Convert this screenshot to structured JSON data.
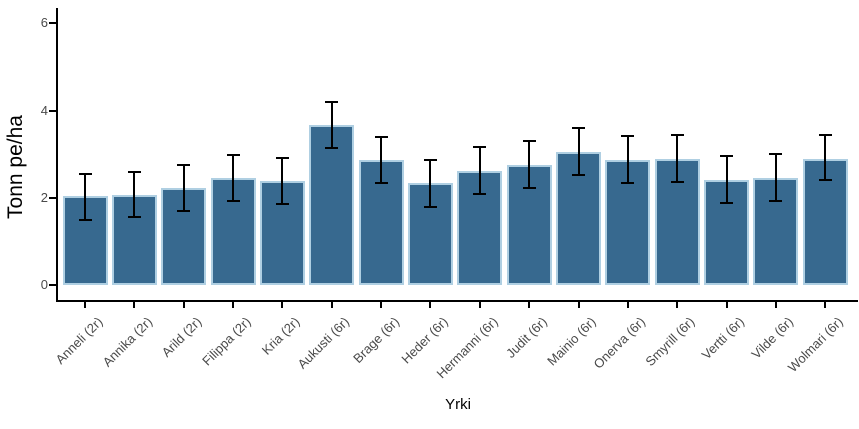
{
  "chart_data": {
    "type": "bar",
    "title": "",
    "xlabel": "Yrki",
    "ylabel": "Tonn pe/ha",
    "ylim": [
      0,
      6
    ],
    "yticks": [
      0,
      2,
      4,
      6
    ],
    "grid": false,
    "legend": false,
    "error_bars": true,
    "bar_color": "#37698F",
    "bar_border_color": "#AFCFE2",
    "error_bar_color": "#000000",
    "axis_color": "#000000",
    "tick_label_color": "#4A4A4A",
    "categories": [
      "Anneli (2r)",
      "Annika (2r)",
      "Arild (2r)",
      "Filippa (2r)",
      "Kria (2r)",
      "Aukusti (6r)",
      "Brage (6r)",
      "Heder (6r)",
      "Hermanni (6r)",
      "Judit (6r)",
      "Mainio (6r)",
      "Onerva (6r)",
      "Smyrill (6r)",
      "Vertti (6r)",
      "Vilde (6r)",
      "Wolmari (6r)"
    ],
    "values": [
      2.03,
      2.06,
      2.22,
      2.46,
      2.39,
      3.67,
      2.86,
      2.33,
      2.62,
      2.76,
      3.06,
      2.87,
      2.9,
      2.41,
      2.46,
      2.9
    ],
    "error_low": [
      1.5,
      1.55,
      1.7,
      1.93,
      1.86,
      3.14,
      2.33,
      1.8,
      2.08,
      2.23,
      2.52,
      2.34,
      2.36,
      1.88,
      1.93,
      2.4
    ],
    "error_high": [
      2.55,
      2.6,
      2.76,
      2.99,
      2.92,
      4.2,
      3.4,
      2.87,
      3.16,
      3.3,
      3.6,
      3.42,
      3.45,
      2.95,
      3.01,
      3.45
    ]
  }
}
